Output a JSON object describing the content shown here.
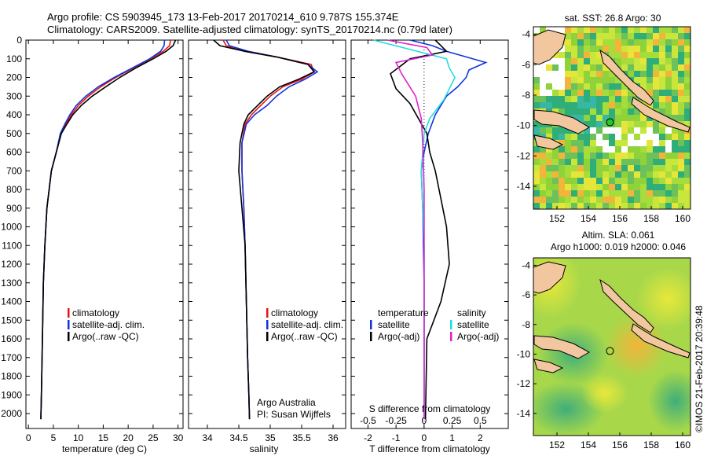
{
  "title_line1": "Argo profile: CS 5903945_173 13-Feb-2017 20170214_610 9.787S 155.374E",
  "title_line2": "Climatology: CARS2009. Satellite-adjusted climatology: synTS_20170214.nc (0.79d later)",
  "side_note": "©IMOS 21-Feb-2017 20:39:48",
  "colors": {
    "red": "#ee1111",
    "blue": "#1133dd",
    "black": "#000000",
    "cyan": "#22dddd",
    "magenta": "#dd22cc"
  },
  "chart_data": [
    {
      "type": "line",
      "name": "temperature profile",
      "xlabel": "temperature (deg C)",
      "ylabel": "",
      "xlim": [
        -0.5,
        31
      ],
      "ylim": [
        2080,
        0
      ],
      "xticks": [
        "0",
        "5",
        "10",
        "15",
        "20",
        "25",
        "30"
      ],
      "yticks": [
        "0",
        "100",
        "200",
        "300",
        "400",
        "500",
        "600",
        "700",
        "800",
        "900",
        "1000",
        "1100",
        "1200",
        "1300",
        "1400",
        "1500",
        "1600",
        "1700",
        "1800",
        "1900",
        "2000"
      ],
      "legend": [
        "climatology",
        "satellite-adj. clim.",
        "Argo(..raw -QC)"
      ],
      "series": [
        {
          "name": "climatology",
          "color": "red",
          "x": [
            28.5,
            28.3,
            27,
            24.5,
            21,
            17.5,
            14.5,
            12,
            10,
            8.6,
            7.5,
            6.5,
            5.6,
            4.6,
            3.7,
            3.3,
            3.0,
            2.8,
            2.6,
            2.5
          ],
          "y": [
            0,
            30,
            60,
            100,
            150,
            200,
            250,
            300,
            350,
            400,
            450,
            500,
            600,
            700,
            900,
            1100,
            1300,
            1600,
            1900,
            2030
          ]
        },
        {
          "name": "satellite-adj. clim.",
          "color": "blue",
          "x": [
            27.3,
            27.2,
            26.5,
            24.3,
            20.8,
            17.2,
            14.0,
            11.5,
            9.6,
            8.3,
            7.3,
            6.4,
            5.6,
            4.6,
            3.7,
            3.3,
            3.0,
            2.8,
            2.6,
            2.5
          ],
          "y": [
            0,
            30,
            60,
            100,
            150,
            200,
            250,
            300,
            350,
            400,
            450,
            500,
            600,
            700,
            900,
            1100,
            1300,
            1600,
            1900,
            2030
          ]
        },
        {
          "name": "Argo(..raw -QC)",
          "color": "black",
          "x": [
            29.5,
            29.0,
            27.6,
            25.0,
            21.5,
            18.3,
            15.5,
            12.8,
            10.6,
            8.9,
            7.7,
            6.6,
            5.6,
            4.6,
            3.7,
            3.3,
            3.0,
            2.8,
            2.6,
            2.5
          ],
          "y": [
            0,
            30,
            60,
            100,
            150,
            200,
            250,
            300,
            350,
            400,
            450,
            500,
            600,
            700,
            900,
            1100,
            1300,
            1600,
            1900,
            2030
          ]
        }
      ]
    },
    {
      "type": "line",
      "name": "salinity profile",
      "xlabel": "salinity",
      "xlim": [
        33.7,
        36.2
      ],
      "ylim": [
        2080,
        0
      ],
      "xticks": [
        "34",
        "34.5",
        "35",
        "35.5",
        "36"
      ],
      "legend": [
        "climatology",
        "satellite-adj. clim.",
        "Argo(..raw -QC)"
      ],
      "note_lines": [
        "Argo Australia",
        "PI: Susan Wijffels"
      ],
      "series": [
        {
          "name": "climatology",
          "color": "red",
          "x": [
            34.25,
            34.3,
            34.6,
            35.1,
            35.65,
            35.7,
            35.5,
            35.2,
            35.0,
            34.85,
            34.7,
            34.6,
            34.55,
            34.55,
            34.58,
            34.6,
            34.62,
            34.64,
            34.66,
            34.67
          ],
          "y": [
            0,
            30,
            60,
            90,
            130,
            170,
            210,
            250,
            300,
            350,
            400,
            450,
            550,
            700,
            900,
            1100,
            1400,
            1700,
            1900,
            2030
          ]
        },
        {
          "name": "satellite-adj. clim.",
          "color": "blue",
          "x": [
            34.3,
            34.35,
            34.65,
            35.1,
            35.6,
            35.75,
            35.55,
            35.3,
            35.1,
            34.95,
            34.75,
            34.62,
            34.55,
            34.55,
            34.58,
            34.6,
            34.62,
            34.64,
            34.66,
            34.67
          ],
          "y": [
            0,
            30,
            60,
            90,
            130,
            170,
            210,
            250,
            300,
            350,
            400,
            450,
            550,
            700,
            900,
            1100,
            1400,
            1700,
            1900,
            2030
          ]
        },
        {
          "name": "Argo(..raw -QC)",
          "color": "black",
          "x": [
            34.1,
            34.2,
            34.6,
            35.1,
            35.6,
            35.7,
            35.45,
            35.15,
            34.95,
            34.8,
            34.65,
            34.58,
            34.52,
            34.5,
            34.55,
            34.6,
            34.62,
            34.64,
            34.66,
            34.67
          ],
          "y": [
            0,
            30,
            60,
            90,
            130,
            170,
            210,
            250,
            300,
            350,
            400,
            450,
            550,
            700,
            900,
            1100,
            1400,
            1700,
            1900,
            2030
          ]
        }
      ]
    },
    {
      "type": "line",
      "name": "difference from climatology",
      "xlabel": "T difference from climatology",
      "xlabel_top": "S difference from climatology",
      "xlim": [
        -2.6,
        3
      ],
      "ylim": [
        2080,
        0
      ],
      "xticks": [
        "-2",
        "-1",
        "0",
        "1",
        "2"
      ],
      "xticks_top": [
        "-0.5",
        "-0.25",
        "0",
        "0.25",
        "0.5"
      ],
      "legend_titles": [
        "temperature",
        "salinity"
      ],
      "legend": [
        "satellite",
        "Argo(-adj)",
        "satellite",
        "Argo(-adj)"
      ],
      "series": [
        {
          "name": "temperature satellite",
          "color": "blue",
          "x": [
            -0.5,
            0.3,
            0.8,
            1.5,
            2.2,
            1.6,
            1.5,
            1.2,
            0.8,
            0.4,
            0.15,
            0.0,
            -0.1,
            -0.05,
            0,
            0
          ],
          "y": [
            0,
            30,
            60,
            90,
            120,
            160,
            200,
            250,
            300,
            400,
            500,
            600,
            700,
            900,
            1300,
            2030
          ]
        },
        {
          "name": "temperature Argo(-adj)",
          "color": "black",
          "x": [
            0.4,
            0.6,
            0.8,
            -0.5,
            -1.2,
            -1.0,
            -0.5,
            -0.2,
            0.1,
            0.2,
            0.4,
            0.6,
            0.8,
            0.9,
            0.6,
            0.1,
            0.05
          ],
          "y": [
            0,
            30,
            60,
            100,
            180,
            260,
            340,
            420,
            500,
            600,
            700,
            850,
            1000,
            1200,
            1400,
            1600,
            2030
          ]
        },
        {
          "name": "salinity satellite",
          "color": "cyan",
          "x": [
            -1.8,
            -0.5,
            0.8,
            0.9,
            1.1,
            0.9,
            0.7,
            0.2,
            0.0,
            -0.1,
            0,
            0
          ],
          "y": [
            0,
            50,
            100,
            150,
            200,
            260,
            320,
            420,
            500,
            700,
            1100,
            2030
          ]
        },
        {
          "name": "salinity Argo(-adj)",
          "color": "magenta",
          "x": [
            -1.3,
            0.1,
            0.3,
            -1.0,
            -0.8,
            -0.3,
            -0.1,
            -0.05,
            0,
            0
          ],
          "y": [
            0,
            40,
            80,
            120,
            180,
            300,
            420,
            550,
            800,
            2030
          ]
        }
      ]
    },
    {
      "type": "heatmap",
      "name": "SST map",
      "title": "sat. SST: 26.8  Argo: 30",
      "xticks": [
        "152",
        "154",
        "156",
        "158",
        "160"
      ],
      "yticks": [
        "-4",
        "-6",
        "-8",
        "-10",
        "-12",
        "-14"
      ],
      "xlim": [
        150.5,
        160.5
      ],
      "ylim": [
        -15.5,
        -3.5
      ],
      "float_position": {
        "lon": 155.374,
        "lat": -9.787
      }
    },
    {
      "type": "heatmap",
      "name": "SLA map",
      "title_lines": [
        "Altim. SLA: 0.061",
        "Argo h1000: 0.019 h2000: 0.046"
      ],
      "xticks": [
        "152",
        "154",
        "156",
        "158",
        "160"
      ],
      "yticks": [
        "-4",
        "-6",
        "-8",
        "-10",
        "-12",
        "-14"
      ],
      "xlim": [
        150.5,
        160.5
      ],
      "ylim": [
        -15.5,
        -3.5
      ],
      "float_position": {
        "lon": 155.374,
        "lat": -9.787
      }
    }
  ]
}
